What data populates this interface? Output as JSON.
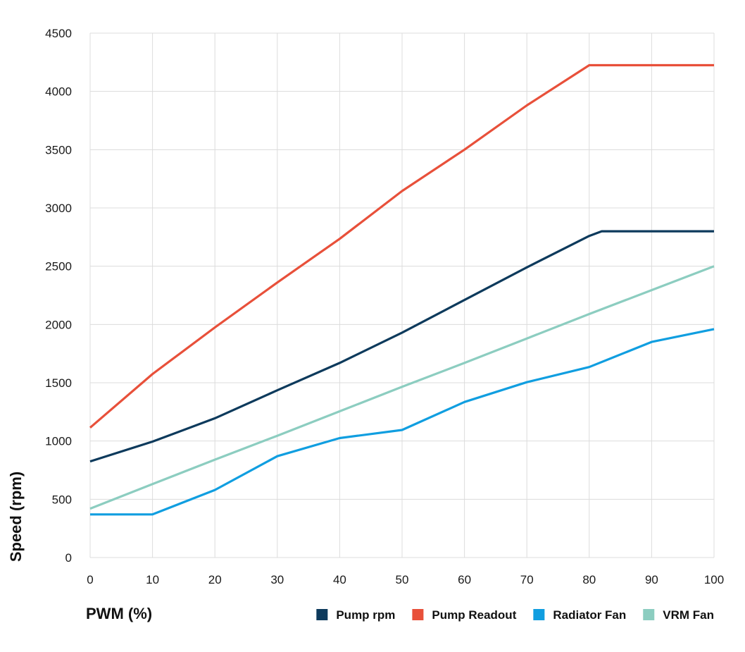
{
  "chart_data": {
    "type": "line",
    "xlabel": "PWM (%)",
    "ylabel": "Speed (rpm)",
    "xlim": [
      0,
      100
    ],
    "ylim": [
      0,
      4500
    ],
    "x_ticks": [
      "0",
      "10",
      "20",
      "30",
      "40",
      "50",
      "60",
      "70",
      "80",
      "90",
      "100"
    ],
    "y_ticks": [
      "0",
      "500",
      "1000",
      "1500",
      "2000",
      "2500",
      "3000",
      "3500",
      "4000",
      "4500"
    ],
    "grid": true,
    "legend_position": "bottom-right",
    "series": [
      {
        "name": "Pump rpm",
        "color": "#0d3a5c",
        "points": [
          [
            0,
            825
          ],
          [
            10,
            995
          ],
          [
            20,
            1195
          ],
          [
            30,
            1435
          ],
          [
            40,
            1670
          ],
          [
            50,
            1930
          ],
          [
            60,
            2210
          ],
          [
            70,
            2490
          ],
          [
            80,
            2760
          ],
          [
            82,
            2800
          ],
          [
            90,
            2800
          ],
          [
            100,
            2800
          ]
        ]
      },
      {
        "name": "Pump Readout",
        "color": "#e8503a",
        "points": [
          [
            0,
            1115
          ],
          [
            10,
            1575
          ],
          [
            20,
            1975
          ],
          [
            30,
            2360
          ],
          [
            40,
            2735
          ],
          [
            50,
            3145
          ],
          [
            60,
            3500
          ],
          [
            70,
            3880
          ],
          [
            80,
            4225
          ],
          [
            90,
            4225
          ],
          [
            100,
            4225
          ]
        ]
      },
      {
        "name": "Radiator Fan",
        "color": "#109ee0",
        "points": [
          [
            0,
            370
          ],
          [
            10,
            370
          ],
          [
            20,
            580
          ],
          [
            30,
            870
          ],
          [
            40,
            1025
          ],
          [
            50,
            1095
          ],
          [
            60,
            1335
          ],
          [
            70,
            1505
          ],
          [
            80,
            1635
          ],
          [
            90,
            1850
          ],
          [
            100,
            1960
          ]
        ]
      },
      {
        "name": "VRM Fan",
        "color": "#8ccdc0",
        "points": [
          [
            0,
            420
          ],
          [
            10,
            630
          ],
          [
            20,
            840
          ],
          [
            30,
            1045
          ],
          [
            40,
            1255
          ],
          [
            50,
            1465
          ],
          [
            60,
            1670
          ],
          [
            70,
            1880
          ],
          [
            80,
            2090
          ],
          [
            90,
            2295
          ],
          [
            100,
            2500
          ]
        ]
      }
    ]
  }
}
